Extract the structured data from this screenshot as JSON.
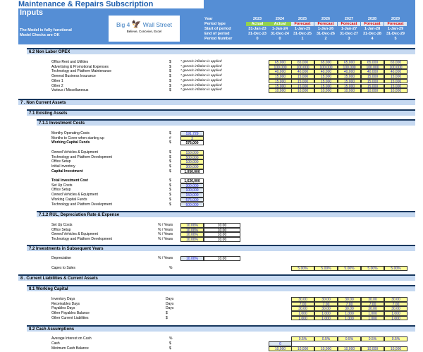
{
  "header": {
    "title": "Maintenance & Repairs Subscription",
    "subtitle": "Inputs",
    "status_line1": "The Model is fully functional",
    "status_line2": "Model Checks are OK",
    "logo_brand_left": "Big 4",
    "logo_brand_right": "Wall Street",
    "logo_tagline": "Believe, Conceive, Excel",
    "row_labels": [
      "Year",
      "Period type",
      "Start of period",
      "End of period",
      "Period Number"
    ],
    "years": [
      "2023",
      "2024",
      "2025",
      "2026",
      "2027",
      "2028",
      "2029"
    ],
    "period_types": [
      "Actual",
      "Actual",
      "Forecast",
      "Forecast",
      "Forecast",
      "Forecast",
      "Forecast"
    ],
    "start_dates": [
      "31-Jan-23",
      "1-Jan-24",
      "1-Jan-25",
      "1-Jan-26",
      "1-Jan-27",
      "1-Jan-28",
      "1-Jan-29"
    ],
    "end_dates": [
      "31-Dec-23",
      "31-Dec-24",
      "31-Dec-25",
      "31-Dec-26",
      "31-Dec-27",
      "31-Dec-28",
      "31-Dec-29"
    ],
    "period_numbers": [
      "0",
      "0",
      "1",
      "2",
      "3",
      "4",
      "5"
    ],
    "colors": {
      "band": "#558ed5",
      "actual": "#92d050",
      "forecast_text": "#e00000"
    }
  },
  "s62": {
    "title": "6.2  Non Labor OPEX",
    "note": "* generic inflation is applied",
    "rows": [
      {
        "label": "Office Rent and Utilities",
        "unit": "$",
        "values": [
          "65,000",
          "65,000",
          "65,000",
          "65,000",
          "65,000",
          "65,000"
        ]
      },
      {
        "label": "Advertising & Promotional Expenses",
        "unit": "$",
        "values": [
          "100,000",
          "100,000",
          "100,000",
          "100,000",
          "100,000",
          "100,000"
        ]
      },
      {
        "label": "Technology and Platform Maintenance",
        "unit": "$",
        "values": [
          "40,000",
          "40,000",
          "40,000",
          "40,000",
          "40,000",
          "40,000"
        ]
      },
      {
        "label": "General Business Insurance",
        "unit": "$",
        "values": [
          "15,000",
          "15,000",
          "15,000",
          "15,000",
          "15,000",
          "15,000"
        ]
      },
      {
        "label": "Other 1",
        "unit": "$",
        "values": [
          "15,000",
          "15,000",
          "15,000",
          "15,000",
          "15,000",
          "15,000"
        ]
      },
      {
        "label": "Other 2",
        "unit": "$",
        "values": [
          "15,000",
          "15,000",
          "15,000",
          "15,000",
          "15,000",
          "15,000"
        ]
      },
      {
        "label": "Various / Miscellaneous",
        "unit": "$",
        "values": [
          "10,000",
          "10,000",
          "10,000",
          "10,000",
          "10,000",
          "10,000"
        ]
      }
    ]
  },
  "s7": {
    "title": "7 .  Non Current Assets"
  },
  "s71": {
    "title": "7.1   Existing Assets"
  },
  "s711": {
    "title": "7.1.1 Investment Costs",
    "group1": [
      {
        "label": "Monthy Operating Costs",
        "unit": "$",
        "value": "191,729",
        "style": "blu"
      },
      {
        "label": "Months to Cover when starting up",
        "unit": "#",
        "value": "3",
        "style": "yel"
      },
      {
        "label": "Working Capital Funds",
        "unit": "$",
        "value": "576,000",
        "style": "wht",
        "bold": true
      }
    ],
    "group2": [
      {
        "label": "Owned Vehicles & Equipment",
        "unit": "$",
        "value": "150,000",
        "style": "yel"
      },
      {
        "label": "Technology and Platform Development",
        "unit": "$",
        "value": "500,000",
        "style": "yel"
      },
      {
        "label": "Office Setup",
        "unit": "$",
        "value": "100,000",
        "style": "yel"
      },
      {
        "label": "Initial Inventory",
        "unit": "$",
        "value": "300,000",
        "style": "yel"
      },
      {
        "label": "Capital Investment",
        "unit": "$",
        "value": "1,050,000",
        "style": "wht",
        "bold": true
      }
    ],
    "group3": [
      {
        "label": "Total Investment Cost",
        "unit": "$",
        "value": "1,626,000",
        "style": "wht",
        "bold": true
      },
      {
        "label": "Set Up Costs",
        "unit": "$",
        "value": "300,000",
        "style": "blu"
      },
      {
        "label": "Office Setup",
        "unit": "$",
        "value": "100,000",
        "style": "blu"
      },
      {
        "label": "Owned Vehicles & Equipment",
        "unit": "$",
        "value": "150,000",
        "style": "blu"
      },
      {
        "label": "Working Capital Funds",
        "unit": "$",
        "value": "576,000",
        "style": "blu"
      },
      {
        "label": "Technology and Platform Development",
        "unit": "$",
        "value": "500,000",
        "style": "blu"
      }
    ]
  },
  "s712": {
    "title": "7.1.2 RUL, Depreciation Rate & Expense",
    "rows": [
      {
        "label": "Set Up Costs",
        "unit": "% / Years",
        "rate": "10.00%",
        "years": "10.00"
      },
      {
        "label": "Office Setup",
        "unit": "% / Years",
        "rate": "10.00%",
        "years": "10.00"
      },
      {
        "label": "Owned Vehicles & Equipment",
        "unit": "% / Years",
        "rate": "10.00%",
        "years": "10.00"
      },
      {
        "label": "Technology and Platform Development",
        "unit": "% / Years",
        "rate": "10.00%",
        "years": "10.00"
      }
    ]
  },
  "s72": {
    "title": "7.2   Investments in Subsequent Years",
    "depreciation": {
      "label": "Depreciation",
      "unit": "% / Years",
      "rate": "10.00%",
      "years": "10.00"
    },
    "capex": {
      "label": "Capex to Sales",
      "unit": "%",
      "values": [
        "5.00%",
        "5.00%",
        "5.00%",
        "5.00%",
        "5.00%"
      ]
    }
  },
  "s8": {
    "title": "8 .  Current Liabilities & Current Assets"
  },
  "s81": {
    "title": "8.1   Working Capital",
    "rows": [
      {
        "label": "Inventory Days",
        "unit": "Days",
        "values": [
          "30.00",
          "30.00",
          "30.00",
          "30.00",
          "30.00"
        ]
      },
      {
        "label": "Receivables Days",
        "unit": "Days",
        "values": [
          "7.00",
          "7.00",
          "7.00",
          "7.00",
          "7.00"
        ]
      },
      {
        "label": "Payables Days",
        "unit": "Days",
        "values": [
          "30.00",
          "30.00",
          "30.00",
          "30.00",
          "30.00"
        ]
      },
      {
        "label": "Other Payables Balance",
        "unit": "$",
        "values": [
          "1,000",
          "1,000",
          "1,000",
          "1,000",
          "1,000"
        ]
      },
      {
        "label": "Other Current Liabilities",
        "unit": "$",
        "values": [
          "1,000",
          "1,000",
          "1,000",
          "1,000",
          "1,000"
        ]
      }
    ]
  },
  "s82": {
    "title": "8.2   Cash Assumptions",
    "interest": {
      "label": "Average Interest on Cash",
      "unit": "%",
      "values": [
        "0.5%",
        "0.5%",
        "0.5%",
        "0.5%",
        "0.5%"
      ]
    },
    "cash": {
      "label": "Cash",
      "unit": "$",
      "value": "0"
    },
    "min_cash": {
      "label": "Minimum Cash Balance",
      "unit": "$",
      "values": [
        "10,000",
        "10,000",
        "10,000",
        "10,000",
        "10,000",
        "10,000"
      ]
    }
  }
}
